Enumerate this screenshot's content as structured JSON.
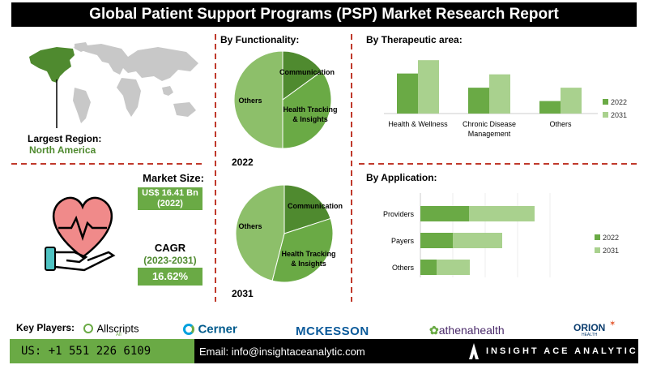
{
  "header": {
    "title": "Global Patient Support Programs (PSP) Market Research Report"
  },
  "region": {
    "label": "Largest Region:",
    "value": "North America"
  },
  "market_size": {
    "label": "Market Size:",
    "value": "US$ 16.41 Bn",
    "year": "(2022)"
  },
  "cagr": {
    "label": "CAGR",
    "period": "(2023-2031)",
    "value": "16.62%"
  },
  "functionality": {
    "title": "By Functionality:",
    "year_2022": "2022",
    "year_2031": "2031"
  },
  "therapeutic": {
    "title": "By Therapeutic area:"
  },
  "application": {
    "title": "By Application:"
  },
  "key_players": {
    "label": "Key Players:",
    "logos": [
      "Allscripts",
      "Cerner",
      "MCKESSON",
      "athenahealth",
      "ORION"
    ],
    "allscripts_tag": "All",
    "orion_sub": "HEALTH"
  },
  "footer": {
    "phone": "US: +1 551 226 6109",
    "email": "Email: info@insightaceanalytic.com",
    "brand": "INSIGHT ACE ANALYTIC"
  },
  "colors": {
    "dark_green": "#4f8a2f",
    "mid_green": "#6aaa45",
    "light_green": "#a9d18e",
    "red_divider": "#c0392b"
  },
  "chart_data": [
    {
      "type": "pie",
      "title": "By Functionality:",
      "year": "2022",
      "categories": [
        "Communication",
        "Health Tracking & Insights",
        "Others"
      ],
      "values": [
        15,
        35,
        50
      ],
      "colors": [
        "#4f8a2f",
        "#6aaa45",
        "#8dbf6a"
      ]
    },
    {
      "type": "pie",
      "title": "By Functionality:",
      "year": "2031",
      "categories": [
        "Communication",
        "Health Tracking & Insights",
        "Others"
      ],
      "values": [
        20,
        34,
        46
      ],
      "colors": [
        "#4f8a2f",
        "#6aaa45",
        "#8dbf6a"
      ]
    },
    {
      "type": "bar",
      "title": "By Therapeutic area:",
      "categories": [
        "Health & Wellness",
        "Chronic Disease Management",
        "Others"
      ],
      "series": [
        {
          "name": "2022",
          "values": [
            48,
            31,
            15
          ],
          "color": "#6aaa45"
        },
        {
          "name": "2031",
          "values": [
            64,
            47,
            31
          ],
          "color": "#a9d18e"
        }
      ],
      "ylim": [
        0,
        70
      ],
      "legend": "right"
    },
    {
      "type": "bar",
      "orientation": "horizontal-stacked",
      "title": "By Application:",
      "categories": [
        "Providers",
        "Payers",
        "Others"
      ],
      "series": [
        {
          "name": "2022",
          "values": [
            60,
            40,
            20
          ],
          "color": "#6aaa45"
        },
        {
          "name": "2031",
          "values": [
            81,
            61,
            41
          ],
          "color": "#a9d18e"
        }
      ],
      "xlim": [
        0,
        160
      ],
      "legend": "right"
    }
  ]
}
